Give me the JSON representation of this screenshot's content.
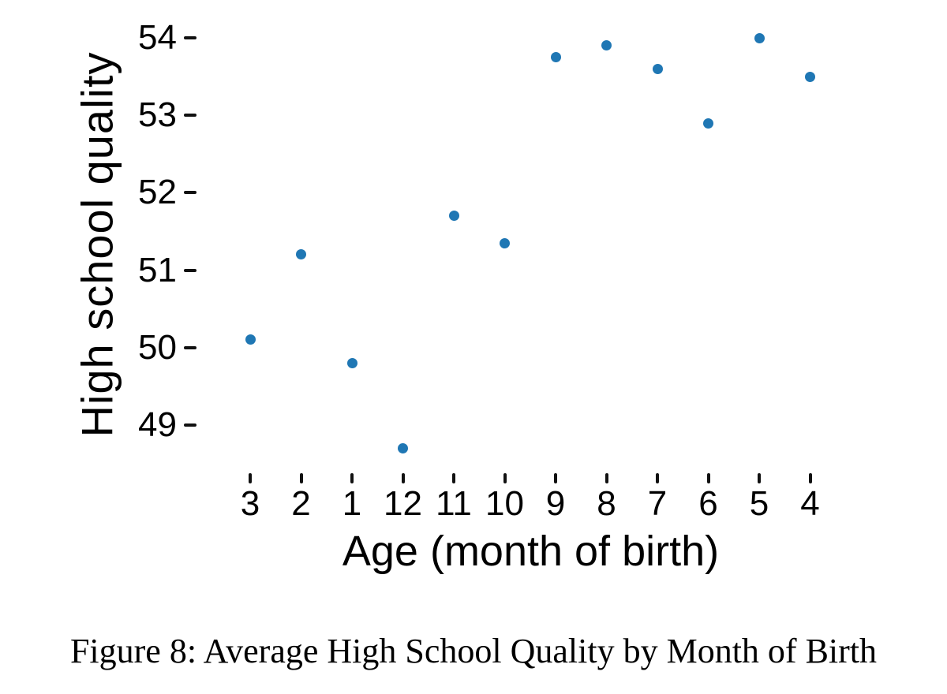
{
  "chart_data": {
    "type": "scatter",
    "title": "",
    "xlabel": "Age (month of birth)",
    "ylabel": "High school quality",
    "categories": [
      "3",
      "2",
      "1",
      "12",
      "11",
      "10",
      "9",
      "8",
      "7",
      "6",
      "5",
      "4"
    ],
    "values": [
      50.1,
      51.2,
      49.8,
      48.7,
      51.7,
      51.35,
      53.75,
      53.9,
      53.6,
      52.9,
      54.0,
      53.5
    ],
    "series_name": "Average high school quality",
    "yticks": [
      54,
      53,
      52,
      51,
      50,
      49
    ],
    "ylim": [
      48.4,
      54.4
    ],
    "grid": false,
    "legend_position": "none",
    "point_color": "#1f77b4",
    "text_color": "#000000"
  },
  "caption": "Figure 8: Average High School Quality by Month of Birth"
}
